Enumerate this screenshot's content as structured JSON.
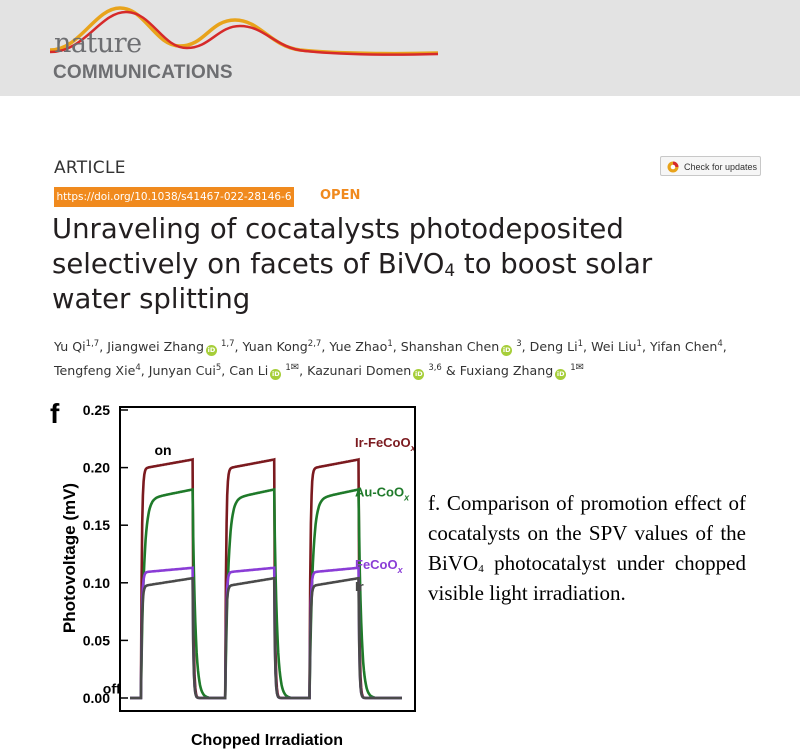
{
  "journal": {
    "name_top": "nature",
    "name_bottom": "COMMUNICATIONS"
  },
  "article": {
    "type": "ARTICLE",
    "doi": "https://doi.org/10.1038/s41467-022-28146-6",
    "access": "OPEN",
    "check_updates_label": "Check for updates",
    "title_part1": "Unraveling of cocatalysts photodeposited selectively on facets of BiVO",
    "title_sub": "4",
    "title_part2": " to boost solar water splitting"
  },
  "authors": [
    {
      "name": "Yu Qi",
      "aff": "1,7",
      "orcid": false,
      "mail": false
    },
    {
      "name": "Jiangwei Zhang",
      "aff": "1,7",
      "orcid": true,
      "mail": false
    },
    {
      "name": "Yuan Kong",
      "aff": "2,7",
      "orcid": false,
      "mail": false
    },
    {
      "name": "Yue Zhao",
      "aff": "1",
      "orcid": false,
      "mail": false
    },
    {
      "name": "Shanshan Chen",
      "aff": "3",
      "orcid": true,
      "mail": false
    },
    {
      "name": "Deng Li",
      "aff": "1",
      "orcid": false,
      "mail": false
    },
    {
      "name": "Wei Liu",
      "aff": "1",
      "orcid": false,
      "mail": false
    },
    {
      "name": "Yifan Chen",
      "aff": "4",
      "orcid": false,
      "mail": false
    },
    {
      "name": "Tengfeng Xie",
      "aff": "4",
      "orcid": false,
      "mail": false
    },
    {
      "name": "Junyan Cui",
      "aff": "5",
      "orcid": false,
      "mail": false
    },
    {
      "name": "Can Li",
      "aff": "1",
      "orcid": true,
      "mail": true
    },
    {
      "name": "Kazunari Domen",
      "aff": "3,6",
      "orcid": true,
      "mail": false
    },
    {
      "name": "Fuxiang Zhang",
      "aff": "1",
      "orcid": true,
      "mail": true
    }
  ],
  "authors_final_joiner": "&",
  "figure": {
    "panel_label": "f",
    "caption_part1": "f. Comparison of promotion effect of cocatalysts on the SPV values of the BiVO",
    "caption_sub": "4",
    "caption_part2": " photocatalyst under chopped visible light irradiation."
  },
  "chart_data": {
    "type": "line",
    "xlabel": "Chopped Irradiation",
    "ylabel": "Photovoltage (mV)",
    "ylim": [
      0,
      0.25
    ],
    "yticks": [
      "0.00",
      "0.05",
      "0.10",
      "0.15",
      "0.20",
      "0.25"
    ],
    "xlim": [
      0,
      100
    ],
    "grid": false,
    "annotations": [
      {
        "text": "on",
        "x": 9,
        "y": 0.211
      },
      {
        "text": "off",
        "x": -10,
        "y": 0.004
      }
    ],
    "cycles": [
      {
        "on": 4,
        "off": 23
      },
      {
        "on": 35,
        "off": 53
      },
      {
        "on": 66,
        "off": 84
      }
    ],
    "series": [
      {
        "name": "Ir-FeCoO",
        "name_sub": "x",
        "color": "#7b1a1f",
        "plateau_start": 0.199,
        "plateau_end": 0.207,
        "baseline": 0.0,
        "rise": "sharp",
        "label_y": 0.218
      },
      {
        "name": "Au-CoO",
        "name_sub": "x",
        "color": "#1f7a2a",
        "plateau_start": 0.172,
        "plateau_end": 0.181,
        "baseline": 0.0,
        "rise": "slow",
        "label_y": 0.175
      },
      {
        "name": "FeCoO",
        "name_sub": "x",
        "color": "#8a3dd6",
        "plateau_start": 0.109,
        "plateau_end": 0.113,
        "baseline": 0.0,
        "rise": "sharp",
        "label_y": 0.112
      },
      {
        "name": "Ir",
        "name_sub": "",
        "color": "#4a4a4a",
        "plateau_start": 0.097,
        "plateau_end": 0.104,
        "baseline": 0.0,
        "rise": "sharp",
        "label_y": 0.093
      }
    ]
  },
  "colors": {
    "banner_bg": "#e3e3e3",
    "brand_orange": "#f08a1e",
    "logo_red": "#d62a2a",
    "logo_gold": "#e8a31b",
    "logo_grey": "#6d6e71",
    "orcid_green": "#a6ce39"
  }
}
